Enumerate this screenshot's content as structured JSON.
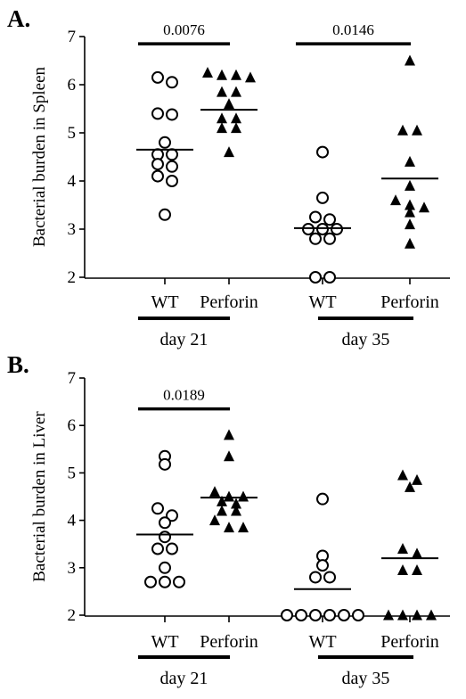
{
  "chart_data": [
    {
      "type": "scatter",
      "panel_label": "A.",
      "ylabel": "Bacterial burden in Spleen",
      "ylim": [
        2,
        7
      ],
      "yticks": [
        2,
        3,
        4,
        5,
        6,
        7
      ],
      "categories": [
        "WT",
        "Perforin",
        "WT",
        "Perforin"
      ],
      "groups": [
        {
          "label": "day 21",
          "categories": [
            0,
            1
          ]
        },
        {
          "label": "day 35",
          "categories": [
            2,
            3
          ]
        }
      ],
      "series": [
        {
          "category_index": 0,
          "marker": "open-circle",
          "values": [
            6.15,
            6.05,
            5.4,
            5.38,
            4.8,
            4.55,
            4.55,
            4.35,
            4.3,
            4.1,
            4.0,
            3.3
          ],
          "mean": 4.65
        },
        {
          "category_index": 1,
          "marker": "filled-triangle",
          "values": [
            6.25,
            6.2,
            6.2,
            6.15,
            5.85,
            5.85,
            5.6,
            5.3,
            5.3,
            5.1,
            5.1,
            4.6
          ],
          "mean": 5.48
        },
        {
          "category_index": 2,
          "marker": "open-circle",
          "values": [
            4.6,
            3.65,
            3.25,
            3.2,
            3.0,
            3.0,
            3.0,
            2.8,
            2.8,
            2.0,
            2.0
          ],
          "mean": 3.02
        },
        {
          "category_index": 3,
          "marker": "filled-triangle",
          "values": [
            6.5,
            5.05,
            5.05,
            4.4,
            3.9,
            3.6,
            3.5,
            3.45,
            3.35,
            3.1,
            2.7
          ],
          "mean": 4.05
        }
      ],
      "comparisons": [
        {
          "from": 0,
          "to": 1,
          "p": "0.0076",
          "y": 6.85
        },
        {
          "from": 2,
          "to": 3,
          "p": "0.0146",
          "y": 6.85
        }
      ]
    },
    {
      "type": "scatter",
      "panel_label": "B.",
      "ylabel": "Bacterial burden in Liver",
      "ylim": [
        2,
        7
      ],
      "yticks": [
        2,
        3,
        4,
        5,
        6,
        7
      ],
      "categories": [
        "WT",
        "Perforin",
        "WT",
        "Perforin"
      ],
      "groups": [
        {
          "label": "day 21",
          "categories": [
            0,
            1
          ]
        },
        {
          "label": "day 35",
          "categories": [
            2,
            3
          ]
        }
      ],
      "series": [
        {
          "category_index": 0,
          "marker": "open-circle",
          "values": [
            5.35,
            5.18,
            4.25,
            4.1,
            3.95,
            3.65,
            3.4,
            3.4,
            3.0,
            2.7,
            2.7,
            2.7
          ],
          "mean": 3.7
        },
        {
          "category_index": 1,
          "marker": "filled-triangle",
          "values": [
            5.8,
            5.35,
            4.6,
            4.5,
            4.5,
            4.4,
            4.35,
            4.2,
            4.2,
            4.0,
            3.85,
            3.85
          ],
          "mean": 4.48
        },
        {
          "category_index": 2,
          "marker": "open-circle",
          "values": [
            4.45,
            3.25,
            3.05,
            2.8,
            2.8,
            2.0,
            2.0,
            2.0,
            2.0,
            2.0,
            2.0
          ],
          "mean": 2.55
        },
        {
          "category_index": 3,
          "marker": "filled-triangle",
          "values": [
            4.95,
            4.85,
            4.7,
            3.4,
            3.3,
            2.95,
            2.95,
            2.0,
            2.0,
            2.0,
            2.0
          ],
          "mean": 3.2
        }
      ],
      "comparisons": [
        {
          "from": 0,
          "to": 1,
          "p": "0.0189",
          "y": 6.35
        }
      ]
    }
  ]
}
